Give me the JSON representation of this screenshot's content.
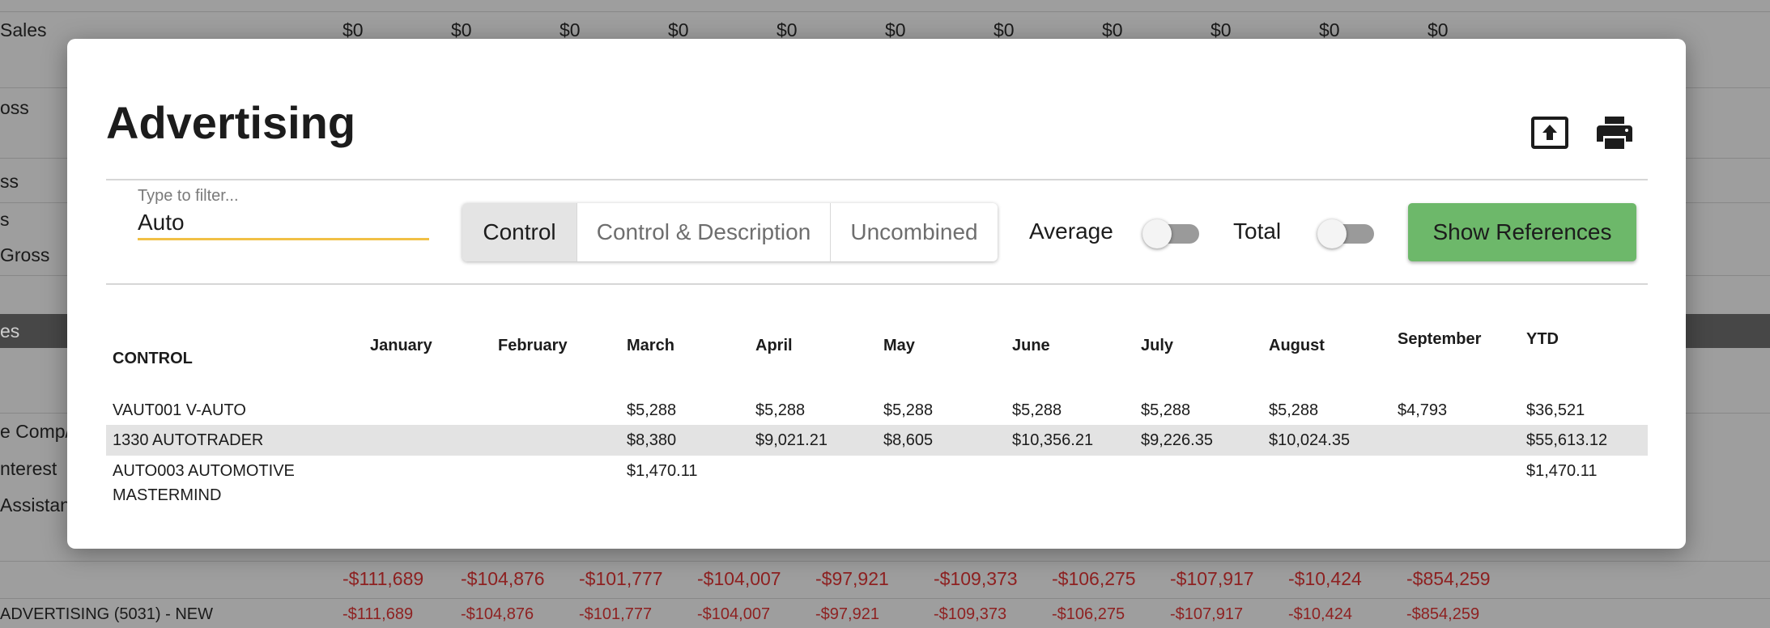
{
  "background": {
    "rows": [
      {
        "label": "Sales",
        "values": [
          "$0",
          "$0",
          "$0",
          "$0",
          "$0",
          "$0",
          "$0",
          "$0",
          "$0",
          "$0",
          "$0"
        ]
      },
      {
        "label": "oss"
      },
      {
        "label": "ss"
      },
      {
        "label": "s"
      },
      {
        "label": "Gross"
      },
      {
        "label": "es"
      },
      {
        "label": "e Comp/"
      },
      {
        "label": "nterest"
      },
      {
        "label": "Assistan"
      }
    ],
    "totals_row": {
      "values": [
        "-$111,689",
        "-$104,876",
        "-$101,777",
        "-$104,007",
        "-$97,921",
        "-$109,373",
        "-$106,275",
        "-$107,917",
        "-$10,424",
        "-$854,259"
      ]
    },
    "last_row": {
      "label": "ADVERTISING (5031) - NEW",
      "values": [
        "-$111,689",
        "-$104,876",
        "-$101,777",
        "-$104,007",
        "-$97,921",
        "-$109,373",
        "-$106,275",
        "-$107,917",
        "-$10,424",
        "-$854,259"
      ]
    }
  },
  "modal": {
    "title": "Advertising",
    "filter": {
      "label": "Type to filter...",
      "value": "Auto"
    },
    "segments": [
      {
        "label": "Control",
        "active": true
      },
      {
        "label": "Control & Description",
        "active": false
      },
      {
        "label": "Uncombined",
        "active": false
      }
    ],
    "average_label": "Average",
    "average_on": false,
    "total_label": "Total",
    "total_on": false,
    "show_references_label": "Show References",
    "icons": {
      "export": "upload-box-icon",
      "print": "printer-icon"
    },
    "colors": {
      "accent_underline": "#f1c046",
      "button_green": "#6db86a",
      "negative_red": "#8e2121"
    }
  },
  "table": {
    "headers": [
      "CONTROL",
      "January",
      "February",
      "March",
      "April",
      "May",
      "June",
      "July",
      "August",
      "September",
      "YTD"
    ],
    "rows": [
      {
        "control": "VAUT001 V-AUTO",
        "cells": [
          "",
          "",
          "$5,288",
          "$5,288",
          "$5,288",
          "$5,288",
          "$5,288",
          "$5,288",
          "$4,793",
          "$36,521"
        ]
      },
      {
        "control": "1330 AUTOTRADER",
        "cells": [
          "",
          "",
          "$8,380",
          "$9,021.21",
          "$8,605",
          "$10,356.21",
          "$9,226.35",
          "$10,024.35",
          "",
          "$55,613.12"
        ]
      },
      {
        "control": "AUTO003 AUTOMOTIVE MASTERMIND",
        "cells": [
          "",
          "",
          "$1,470.11",
          "",
          "",
          "",
          "",
          "",
          "",
          "$1,470.11"
        ]
      }
    ]
  }
}
